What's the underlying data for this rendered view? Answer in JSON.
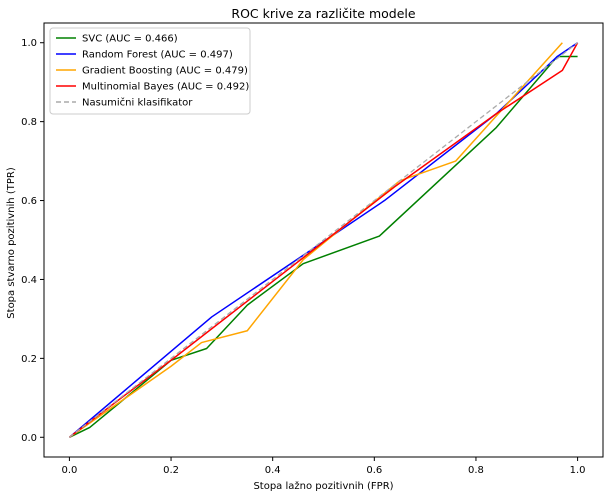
{
  "chart_data": {
    "type": "line",
    "title": "ROC krive za različite modele",
    "xlabel": "Stopa lažno pozitivnih (FPR)",
    "ylabel": "Stopa stvarno pozitivnih (TPR)",
    "xlim": [
      -0.05,
      1.05
    ],
    "ylim": [
      -0.05,
      1.05
    ],
    "xticks": [
      "0.0",
      "0.2",
      "0.4",
      "0.6",
      "0.8",
      "1.0"
    ],
    "yticks": [
      "0.0",
      "0.2",
      "0.4",
      "0.6",
      "0.8",
      "1.0"
    ],
    "grid": false,
    "legend_position": "top-left",
    "series": [
      {
        "name": "SVC (AUC = 0.466)",
        "color": "#008000",
        "dashed": false,
        "x": [
          0.0,
          0.04,
          0.2,
          0.27,
          0.35,
          0.46,
          0.61,
          0.84,
          0.96,
          1.0
        ],
        "y": [
          0.0,
          0.025,
          0.195,
          0.225,
          0.335,
          0.44,
          0.51,
          0.785,
          0.965,
          0.965
        ]
      },
      {
        "name": "Random Forest (AUC = 0.497)",
        "color": "#0000ff",
        "dashed": false,
        "x": [
          0.0,
          0.28,
          0.62,
          0.84,
          0.96,
          1.0
        ],
        "y": [
          0.0,
          0.305,
          0.6,
          0.82,
          0.965,
          1.0
        ]
      },
      {
        "name": "Gradient Boosting (AUC = 0.479)",
        "color": "#ffa500",
        "dashed": false,
        "x": [
          0.0,
          0.2,
          0.26,
          0.35,
          0.46,
          0.65,
          0.76,
          0.97
        ],
        "y": [
          0.0,
          0.18,
          0.24,
          0.27,
          0.45,
          0.65,
          0.7,
          1.0
        ]
      },
      {
        "name": "Multinomial Bayes (AUC = 0.492)",
        "color": "#ff0000",
        "dashed": false,
        "x": [
          0.0,
          0.21,
          0.64,
          0.84,
          0.97,
          1.0
        ],
        "y": [
          0.0,
          0.205,
          0.635,
          0.82,
          0.93,
          1.0
        ]
      },
      {
        "name": "Nasumični klasifikator",
        "color": "#aaaaaa",
        "dashed": true,
        "x": [
          0.0,
          1.0
        ],
        "y": [
          0.0,
          1.0
        ]
      }
    ]
  }
}
